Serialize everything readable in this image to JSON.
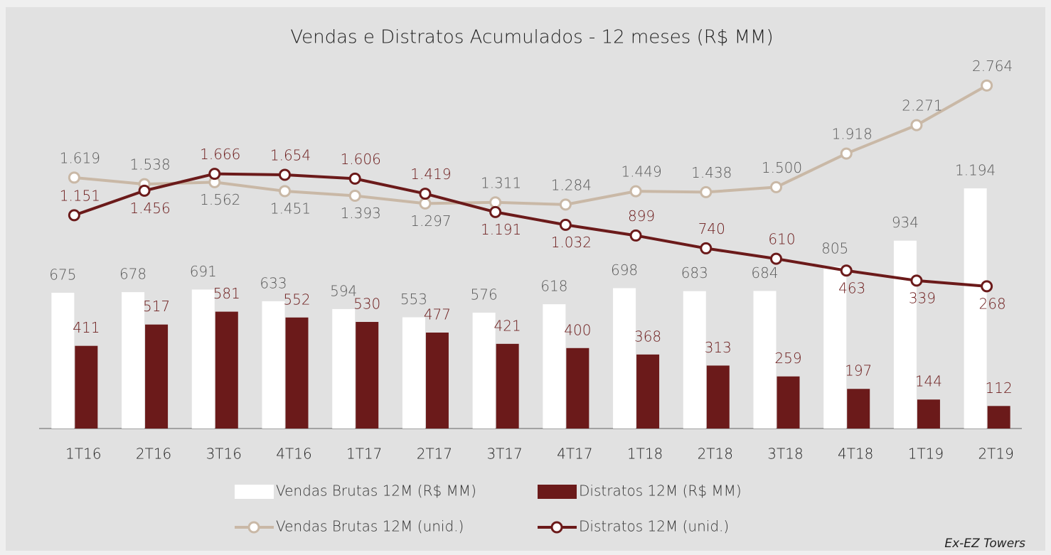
{
  "chart_data": {
    "type": "combo",
    "title": "Vendas e Distratos Acumulados - 12 meses (R$ MM)",
    "note": "Ex-EZ Towers",
    "categories": [
      "1T16",
      "2T16",
      "3T16",
      "4T16",
      "1T17",
      "2T17",
      "3T17",
      "4T17",
      "1T18",
      "2T18",
      "3T18",
      "4T18",
      "1T19",
      "2T19"
    ],
    "ylim": [
      0,
      2000
    ],
    "y2lim": [
      -1500,
      3500
    ],
    "series": [
      {
        "name": "Vendas Brutas 12M (R$ MM)",
        "type": "bar",
        "color": "#ffffff",
        "label_color": "#595959",
        "values": [
          675,
          678,
          691,
          633,
          594,
          553,
          576,
          618,
          698,
          683,
          684,
          805,
          934,
          1194
        ],
        "value_labels": [
          "675",
          "678",
          "691",
          "633",
          "594",
          "553",
          "576",
          "618",
          "698",
          "683",
          "684",
          "805",
          "934",
          "1.194"
        ]
      },
      {
        "name": "Distratos 12M (R$ MM)",
        "type": "bar",
        "color": "#6b1a1a",
        "label_color": "#6b1a1a",
        "values": [
          411,
          517,
          581,
          552,
          530,
          477,
          421,
          400,
          368,
          313,
          259,
          197,
          144,
          112
        ]
      },
      {
        "name": "Vendas Brutas 12M (unid.)",
        "type": "line",
        "axis": "y2",
        "color": "#c9b8a6",
        "label_color": "#595959",
        "values": [
          1619,
          1538,
          1562,
          1451,
          1393,
          1297,
          1311,
          1284,
          1449,
          1438,
          1500,
          1918,
          2271,
          2764
        ],
        "value_labels": [
          "1.619",
          "1.538",
          "1.562",
          "1.451",
          "1.393",
          "1.297",
          "1.311",
          "1.284",
          "1.449",
          "1.438",
          "1.500",
          "1.918",
          "2.271",
          "2.764"
        ]
      },
      {
        "name": "Distratos 12M (unid.)",
        "type": "line",
        "axis": "y2",
        "color": "#6b1a1a",
        "label_color": "#6b1a1a",
        "values": [
          1151,
          1456,
          1666,
          1654,
          1606,
          1419,
          1191,
          1032,
          899,
          740,
          610,
          463,
          339,
          268
        ],
        "value_labels": [
          "1.151",
          "1.456",
          "1.666",
          "1.654",
          "1.606",
          "1.419",
          "1.191",
          "1.032",
          "899",
          "740",
          "610",
          "463",
          "339",
          "268"
        ]
      }
    ]
  }
}
